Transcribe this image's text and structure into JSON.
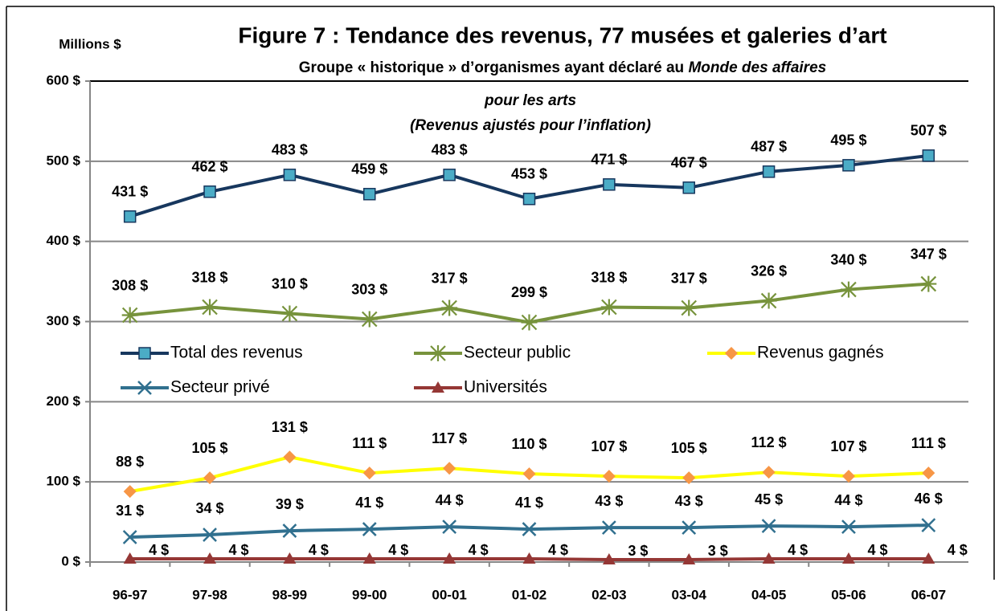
{
  "chart_data": {
    "type": "line",
    "title": "Figure 7 : Tendance des revenus, 77 musées et galeries d’art",
    "subtitle": [
      "Groupe « historique » d’organismes ayant déclaré au ",
      "Monde des affaires",
      "pour les arts"
    ],
    "note": "(Revenus ajustés pour l’inflation)",
    "y_axis_label": "Millions $",
    "categories": [
      "96-97",
      "97-98",
      "98-99",
      "99-00",
      "00-01",
      "01-02",
      "02-03",
      "03-04",
      "04-05",
      "05-06",
      "06-07"
    ],
    "ylim": [
      0,
      600
    ],
    "yticks": [
      {
        "value": 0,
        "label": "0 $"
      },
      {
        "value": 100,
        "label": "100 $"
      },
      {
        "value": 200,
        "label": "200 $"
      },
      {
        "value": 300,
        "label": "300 $"
      },
      {
        "value": 400,
        "label": "400 $"
      },
      {
        "value": 500,
        "label": "500 $"
      },
      {
        "value": 600,
        "label": "600 $"
      }
    ],
    "grid": true,
    "series": [
      {
        "name": "Total des revenus",
        "color": "#17375e",
        "marker": "square",
        "marker_color": "#4bacc6",
        "values": [
          431,
          462,
          483,
          459,
          483,
          453,
          471,
          467,
          487,
          495,
          507
        ],
        "value_labels": [
          "431 $",
          "462 $",
          "483 $",
          "459 $",
          "483 $",
          "453 $",
          "471 $",
          "467 $",
          "487 $",
          "495 $",
          "507 $"
        ]
      },
      {
        "name": "Secteur public",
        "color": "#77933c",
        "marker": "asterisk",
        "marker_color": "#77933c",
        "values": [
          308,
          318,
          310,
          303,
          317,
          299,
          318,
          317,
          326,
          340,
          347
        ],
        "value_labels": [
          "308 $",
          "318 $",
          "310 $",
          "303 $",
          "317 $",
          "299 $",
          "318 $",
          "317 $",
          "326 $",
          "340 $",
          "347 $"
        ]
      },
      {
        "name": "Revenus gagnés",
        "color": "#ffff00",
        "marker": "diamond",
        "marker_color": "#f79646",
        "values": [
          88,
          105,
          131,
          111,
          117,
          110,
          107,
          105,
          112,
          107,
          111
        ],
        "value_labels": [
          "88 $",
          "105 $",
          "131 $",
          "111 $",
          "117 $",
          "110 $",
          "107 $",
          "105 $",
          "112 $",
          "107 $",
          "111 $"
        ]
      },
      {
        "name": "Secteur privé",
        "color": "#31708f",
        "marker": "x",
        "marker_color": "#31708f",
        "values": [
          31,
          34,
          39,
          41,
          44,
          41,
          43,
          43,
          45,
          44,
          46
        ],
        "value_labels": [
          "31 $",
          "34 $",
          "39 $",
          "41 $",
          "44 $",
          "41 $",
          "43 $",
          "43 $",
          "45 $",
          "44 $",
          "46 $"
        ]
      },
      {
        "name": "Universités",
        "color": "#953735",
        "marker": "triangle",
        "marker_color": "#953735",
        "values": [
          4,
          4,
          4,
          4,
          4,
          4,
          3,
          3,
          4,
          4,
          4
        ],
        "value_labels": [
          "4 $",
          "4 $",
          "4 $",
          "4 $",
          "4 $",
          "4 $",
          "3 $",
          "3 $",
          "4 $",
          "4 $",
          "4 $"
        ]
      }
    ]
  }
}
